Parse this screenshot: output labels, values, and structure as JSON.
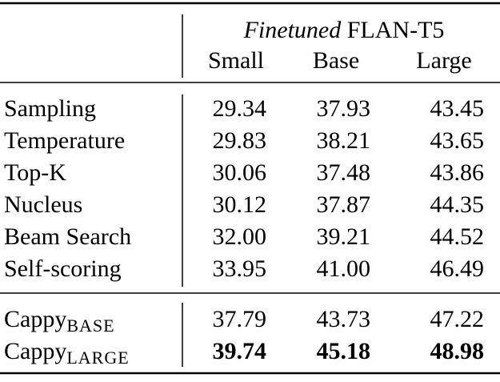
{
  "table": {
    "header": {
      "group_emphasis": "Finetuned",
      "group_title": "FLAN-T5",
      "columns": [
        "Small",
        "Base",
        "Large"
      ]
    },
    "rows": [
      {
        "label": "Sampling",
        "cells": [
          "29.34",
          "37.93",
          "43.45"
        ]
      },
      {
        "label": "Temperature",
        "cells": [
          "29.83",
          "38.21",
          "43.65"
        ]
      },
      {
        "label": "Top-K",
        "cells": [
          "30.06",
          "37.48",
          "43.86"
        ]
      },
      {
        "label": "Nucleus",
        "cells": [
          "30.12",
          "37.87",
          "44.35"
        ]
      },
      {
        "label": "Beam Search",
        "cells": [
          "32.00",
          "39.21",
          "44.52"
        ]
      },
      {
        "label": "Self-scoring",
        "cells": [
          "33.95",
          "41.00",
          "46.49"
        ]
      }
    ],
    "cappy_rows": [
      {
        "label": "Cappy",
        "subscript": "BASE",
        "cells": [
          "37.79",
          "43.73",
          "47.22"
        ]
      },
      {
        "label": "Cappy",
        "subscript": "LARGE",
        "cells": [
          "39.74",
          "45.18",
          "48.98"
        ]
      }
    ]
  }
}
